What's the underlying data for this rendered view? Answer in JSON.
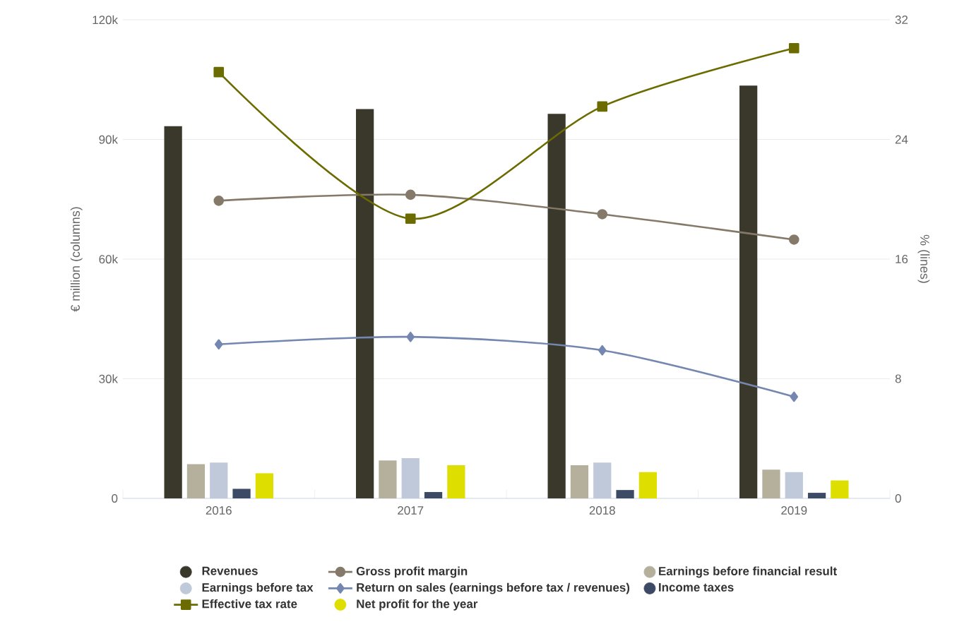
{
  "chart_data": {
    "type": "bar",
    "categories": [
      "2016",
      "2017",
      "2018",
      "2019"
    ],
    "ylabel": "€ million (columns)",
    "y2label": "% (lines)",
    "ylim": [
      0,
      120000
    ],
    "yticks": [
      0,
      {
        "value": 30000,
        "label": "30k"
      },
      {
        "value": 60000,
        "label": "60k"
      },
      {
        "value": 90000,
        "label": "90k"
      },
      {
        "value": 120000,
        "label": "120k"
      }
    ],
    "y2lim": [
      0,
      32
    ],
    "y2ticks": [
      0,
      8,
      16,
      24,
      32
    ],
    "grid": "y",
    "legend": "bottom",
    "series": [
      {
        "name": "Revenues",
        "color": "#3a372b",
        "values": [
          93300,
          97600,
          96400,
          103500
        ]
      },
      {
        "name": "Gross profit margin",
        "type": "line",
        "axis": "y2",
        "marker": "circle",
        "color": "#857a6a",
        "values": [
          19.9,
          20.3,
          19.0,
          17.3
        ]
      },
      {
        "name": "Earnings before financial result",
        "color": "#b5b09c",
        "values": [
          8600,
          9500,
          8300,
          7200
        ]
      },
      {
        "name": "Earnings before tax",
        "color": "#c0c9d9",
        "values": [
          9000,
          10100,
          9000,
          6600
        ]
      },
      {
        "name": "Return on sales (earnings before tax / revenues)",
        "type": "line",
        "axis": "y2",
        "marker": "diamond",
        "color": "#7487b0",
        "values": [
          10.3,
          10.8,
          9.9,
          6.8
        ]
      },
      {
        "name": "Income taxes",
        "color": "#3c4a66",
        "values": [
          2400,
          1600,
          2100,
          1400
        ]
      },
      {
        "name": "Effective tax rate",
        "type": "line",
        "axis": "y2",
        "marker": "square",
        "color": "#6b6b00",
        "values": [
          28.5,
          18.7,
          26.2,
          30.1
        ]
      },
      {
        "name": "Net profit for the year",
        "color": "#dede00",
        "values": [
          6300,
          8300,
          6600,
          4500
        ]
      }
    ]
  }
}
